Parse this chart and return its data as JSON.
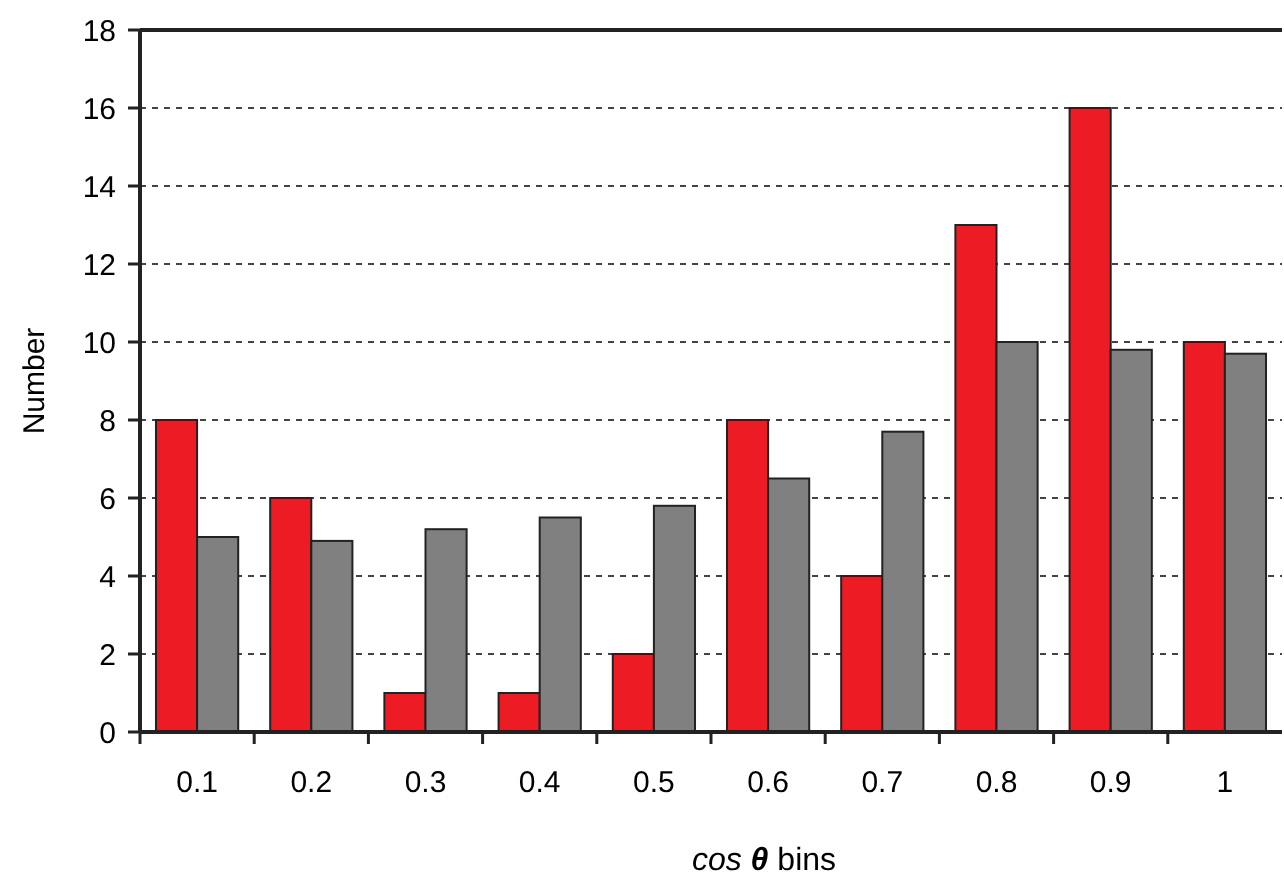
{
  "chart_data": {
    "type": "bar",
    "xlabel": "cos θ bins",
    "ylabel": "Number",
    "categories": [
      "0.1",
      "0.2",
      "0.3",
      "0.4",
      "0.5",
      "0.6",
      "0.7",
      "0.8",
      "0.9",
      "1"
    ],
    "series": [
      {
        "color": "#ed1c24",
        "values": [
          8,
          6,
          1,
          1,
          2,
          8,
          4,
          13,
          16,
          10
        ]
      },
      {
        "color": "#808080",
        "values": [
          5.0,
          4.9,
          5.2,
          5.5,
          5.8,
          6.5,
          7.7,
          10,
          9.8,
          9.7
        ]
      }
    ],
    "ylim": [
      0,
      18
    ],
    "yticks": [
      0,
      2,
      4,
      6,
      8,
      10,
      12,
      14,
      16,
      18
    ],
    "grid": "y"
  }
}
